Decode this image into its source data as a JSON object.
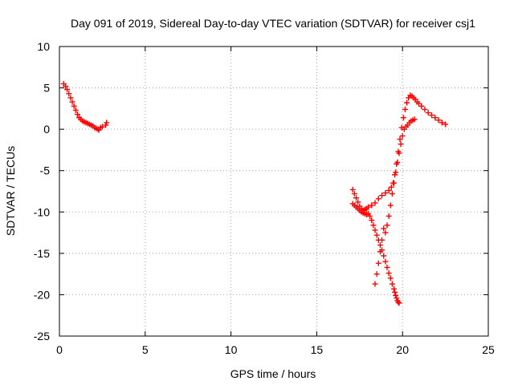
{
  "chart_data": {
    "type": "scatter",
    "title": "Day 091 of 2019, Sidereal Day-to-day VTEC variation (SDTVAR) for receiver csj1",
    "xlabel": "GPS time / hours",
    "ylabel": "SDTVAR / TECUs",
    "xlim": [
      0,
      25
    ],
    "ylim": [
      -25,
      10
    ],
    "xticks": [
      "0",
      "5",
      "10",
      "15",
      "20",
      "25"
    ],
    "yticks": [
      "10",
      "5",
      "0",
      "-5",
      "-10",
      "-15",
      "-20",
      "-25"
    ],
    "grid": true,
    "marker": "+",
    "color": "#ff0000",
    "series": [
      {
        "x": [
          0.25,
          0.35,
          0.45,
          0.55,
          0.65,
          0.75,
          0.85,
          0.95,
          1.05,
          1.15,
          1.25,
          1.35,
          1.45,
          1.55,
          1.65,
          1.75,
          1.85,
          1.95,
          2.05,
          2.15,
          2.25,
          2.3,
          2.4,
          2.5,
          2.7,
          2.75
        ],
        "y": [
          5.5,
          5.2,
          4.8,
          4.3,
          3.8,
          3.3,
          2.8,
          2.3,
          1.8,
          1.4,
          1.2,
          1.0,
          0.9,
          0.8,
          0.7,
          0.6,
          0.5,
          0.4,
          0.2,
          0.1,
          0.0,
          -0.1,
          0.2,
          0.3,
          0.5,
          0.8
        ]
      },
      {
        "x": [
          17.1,
          17.2,
          17.3,
          17.4,
          17.5,
          17.6,
          17.7,
          17.8,
          17.9,
          18.0,
          18.1,
          18.2,
          18.3,
          18.4,
          18.5,
          18.6,
          18.7,
          18.8,
          18.9,
          19.0,
          19.1,
          19.2,
          19.3,
          19.4,
          19.5,
          19.55,
          19.6,
          19.65,
          19.7,
          19.75,
          19.8
        ],
        "y": [
          -9.0,
          -9.2,
          -9.4,
          -9.6,
          -9.8,
          -10.0,
          -10.1,
          -10.2,
          -10.3,
          -10.2,
          -10.5,
          -11.0,
          -11.6,
          -12.2,
          -12.8,
          -13.4,
          -14.0,
          -14.6,
          -15.3,
          -16.0,
          -16.7,
          -17.4,
          -18.0,
          -18.7,
          -19.3,
          -19.7,
          -20.1,
          -20.4,
          -20.7,
          -20.9,
          -21.0
        ]
      },
      {
        "x": [
          18.4,
          18.5,
          18.6,
          18.7,
          18.8,
          18.9,
          19.0,
          19.1,
          19.2,
          19.3,
          19.4,
          19.5,
          19.6,
          19.7,
          19.8,
          19.9,
          20.0,
          20.1,
          20.2,
          20.3,
          20.4,
          20.5,
          20.6,
          20.7
        ],
        "y": [
          -18.7,
          -17.5,
          -16.2,
          -14.8,
          -13.4,
          -12.0,
          -12.5,
          -11.6,
          -10.5,
          -9.2,
          -7.8,
          -6.5,
          -5.2,
          -4.0,
          -2.9,
          -1.8,
          -0.8,
          0.0,
          0.3,
          0.5,
          0.8,
          1.0,
          1.1,
          1.2
        ]
      },
      {
        "x": [
          17.1,
          17.2,
          17.3,
          17.4,
          17.5,
          17.6,
          17.7,
          17.8,
          17.9,
          18.0,
          18.2,
          18.4,
          18.6,
          18.8,
          19.0,
          19.2,
          19.35,
          19.45,
          19.55,
          19.65,
          19.75,
          19.85,
          19.95,
          20.05,
          20.15,
          20.25,
          20.35,
          20.45,
          20.55,
          20.65,
          20.75,
          20.85,
          20.95,
          21.1,
          21.3,
          21.5,
          21.7,
          21.9,
          22.1,
          22.3,
          22.5
        ],
        "y": [
          -7.3,
          -7.8,
          -8.3,
          -8.8,
          -9.3,
          -9.6,
          -9.8,
          -9.7,
          -9.6,
          -9.4,
          -9.2,
          -8.9,
          -8.4,
          -8.0,
          -7.7,
          -7.4,
          -7.0,
          -6.5,
          -5.5,
          -4.2,
          -2.7,
          -1.2,
          0.2,
          1.4,
          2.4,
          3.2,
          3.8,
          4.1,
          4.0,
          3.8,
          3.6,
          3.3,
          3.1,
          2.8,
          2.4,
          2.0,
          1.7,
          1.4,
          1.1,
          0.8,
          0.6
        ]
      }
    ]
  }
}
